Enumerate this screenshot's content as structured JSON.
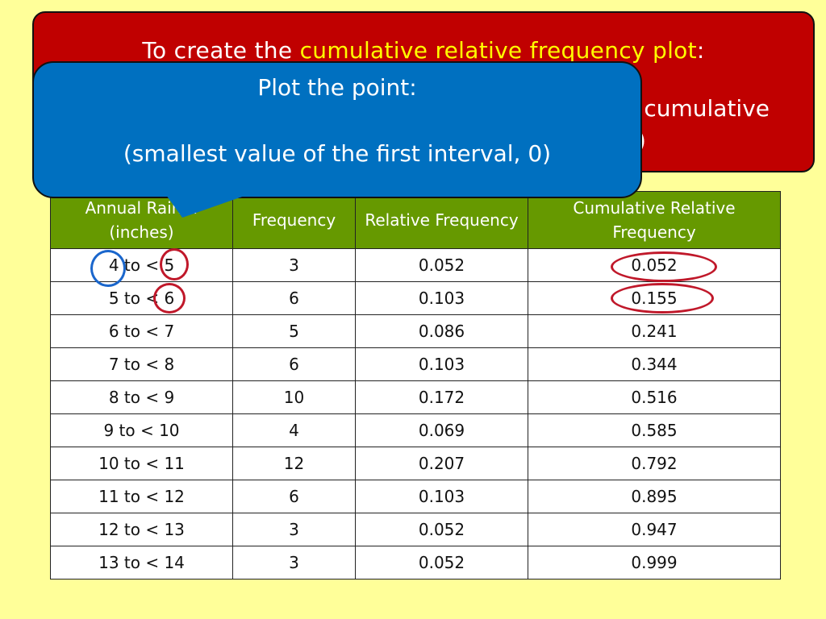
{
  "instruction_box": {
    "title_prefix": "To create the ",
    "title_highlight": "cumulative relative frequency  plot",
    "title_suffix": ":",
    "partial_line_2": "cumulative",
    "partial_line_3": ")"
  },
  "callout": {
    "line1": "Plot the point:",
    "line2": "(smallest value of the first interval, 0)"
  },
  "table": {
    "headers": {
      "col1": "Annual Rainfall (inches)",
      "col1_visible": "Annual Rain… (inches)",
      "col2": "Frequency",
      "col3": "Relative Frequency",
      "col4": "Cumulative Relative Frequency"
    },
    "rows": [
      {
        "interval": "4 to < 5",
        "frequency": "3",
        "relative": "0.052",
        "cumulative": "0.052"
      },
      {
        "interval": "5 to < 6",
        "frequency": "6",
        "relative": "0.103",
        "cumulative": "0.155"
      },
      {
        "interval": "6 to < 7",
        "frequency": "5",
        "relative": "0.086",
        "cumulative": "0.241"
      },
      {
        "interval": "7 to < 8",
        "frequency": "6",
        "relative": "0.103",
        "cumulative": "0.344"
      },
      {
        "interval": "8 to < 9",
        "frequency": "10",
        "relative": "0.172",
        "cumulative": "0.516"
      },
      {
        "interval": "9 to < 10",
        "frequency": "4",
        "relative": "0.069",
        "cumulative": "0.585"
      },
      {
        "interval": "10 to < 11",
        "frequency": "12",
        "relative": "0.207",
        "cumulative": "0.792"
      },
      {
        "interval": "11 to < 12",
        "frequency": "6",
        "relative": "0.103",
        "cumulative": "0.895"
      },
      {
        "interval": "12 to < 13",
        "frequency": "3",
        "relative": "0.052",
        "cumulative": "0.947"
      },
      {
        "interval": "13 to < 14",
        "frequency": "3",
        "relative": "0.052",
        "cumulative": "0.999"
      }
    ]
  },
  "colors": {
    "background": "#ffff99",
    "red_box": "#c00000",
    "highlight_text": "#ffff00",
    "callout": "#0070c0",
    "header": "#669900",
    "ring_blue": "#1a66cc",
    "ring_red": "#c0182a"
  }
}
